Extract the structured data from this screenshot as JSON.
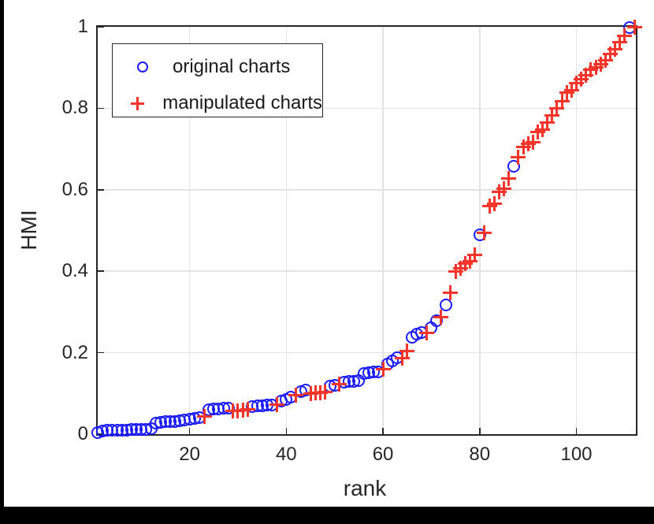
{
  "legend": {
    "items": [
      {
        "label": "original charts",
        "marker": "circle",
        "color": "#1a1aff"
      },
      {
        "label": "manipulated charts",
        "marker": "plus",
        "color": "#f5342a"
      }
    ]
  },
  "chart_data": {
    "type": "scatter",
    "title": "",
    "xlabel": "rank",
    "ylabel": "HMI",
    "xlim": [
      1,
      112.3
    ],
    "ylim": [
      0,
      1
    ],
    "grid": "on",
    "legend_position": "upper-left-inside",
    "x_ticks": [
      {
        "v": 20,
        "label": "20"
      },
      {
        "v": 40,
        "label": "40"
      },
      {
        "v": 60,
        "label": "60"
      },
      {
        "v": 80,
        "label": "80"
      },
      {
        "v": 100,
        "label": "100"
      }
    ],
    "y_ticks": [
      {
        "v": 0,
        "label": "0"
      },
      {
        "v": 0.2,
        "label": "0.2"
      },
      {
        "v": 0.4,
        "label": "0.4"
      },
      {
        "v": 0.6,
        "label": "0.6"
      },
      {
        "v": 0.8,
        "label": "0.8"
      },
      {
        "v": 1,
        "label": "1"
      }
    ],
    "series": [
      {
        "name": "original charts",
        "marker": "circle",
        "color": "#1a1aff",
        "points": [
          [
            1,
            0.004
          ],
          [
            2,
            0.008
          ],
          [
            3,
            0.009
          ],
          [
            4,
            0.009
          ],
          [
            5,
            0.01
          ],
          [
            6,
            0.01
          ],
          [
            7,
            0.01
          ],
          [
            8,
            0.011
          ],
          [
            9,
            0.011
          ],
          [
            10,
            0.012
          ],
          [
            11,
            0.012
          ],
          [
            12,
            0.013
          ],
          [
            13,
            0.028
          ],
          [
            14,
            0.029
          ],
          [
            15,
            0.03
          ],
          [
            16,
            0.03
          ],
          [
            17,
            0.031
          ],
          [
            18,
            0.032
          ],
          [
            19,
            0.034
          ],
          [
            20,
            0.036
          ],
          [
            21,
            0.038
          ],
          [
            22,
            0.04
          ],
          [
            24,
            0.06
          ],
          [
            25,
            0.061
          ],
          [
            26,
            0.062
          ],
          [
            27,
            0.063
          ],
          [
            28,
            0.064
          ],
          [
            33,
            0.068
          ],
          [
            34,
            0.069
          ],
          [
            35,
            0.07
          ],
          [
            36,
            0.071
          ],
          [
            37,
            0.072
          ],
          [
            39,
            0.082
          ],
          [
            40,
            0.086
          ],
          [
            41,
            0.09
          ],
          [
            43,
            0.105
          ],
          [
            44,
            0.108
          ],
          [
            49,
            0.118
          ],
          [
            50,
            0.12
          ],
          [
            52,
            0.128
          ],
          [
            53,
            0.13
          ],
          [
            54,
            0.13
          ],
          [
            55,
            0.131
          ],
          [
            56,
            0.148
          ],
          [
            57,
            0.15
          ],
          [
            58,
            0.152
          ],
          [
            59,
            0.153
          ],
          [
            61,
            0.172
          ],
          [
            62,
            0.18
          ],
          [
            63,
            0.188
          ],
          [
            66,
            0.238
          ],
          [
            67,
            0.245
          ],
          [
            68,
            0.25
          ],
          [
            70,
            0.262
          ],
          [
            71,
            0.278
          ],
          [
            73,
            0.318
          ],
          [
            80,
            0.49
          ],
          [
            87,
            0.658
          ],
          [
            111,
            0.998
          ]
        ]
      },
      {
        "name": "manipulated charts",
        "marker": "plus",
        "color": "#f5342a",
        "points": [
          [
            23,
            0.043
          ],
          [
            29,
            0.057
          ],
          [
            30,
            0.058
          ],
          [
            31,
            0.059
          ],
          [
            32,
            0.06
          ],
          [
            38,
            0.073
          ],
          [
            42,
            0.095
          ],
          [
            45,
            0.1
          ],
          [
            46,
            0.101
          ],
          [
            47,
            0.102
          ],
          [
            48,
            0.103
          ],
          [
            51,
            0.122
          ],
          [
            60,
            0.159
          ],
          [
            64,
            0.186
          ],
          [
            65,
            0.205
          ],
          [
            69,
            0.248
          ],
          [
            72,
            0.288
          ],
          [
            74,
            0.348
          ],
          [
            75,
            0.4
          ],
          [
            76,
            0.408
          ],
          [
            77,
            0.418
          ],
          [
            78,
            0.424
          ],
          [
            79,
            0.44
          ],
          [
            81,
            0.494
          ],
          [
            82,
            0.56
          ],
          [
            83,
            0.565
          ],
          [
            84,
            0.595
          ],
          [
            85,
            0.602
          ],
          [
            86,
            0.628
          ],
          [
            88,
            0.68
          ],
          [
            89,
            0.705
          ],
          [
            90,
            0.712
          ],
          [
            91,
            0.716
          ],
          [
            92,
            0.742
          ],
          [
            93,
            0.748
          ],
          [
            94,
            0.765
          ],
          [
            95,
            0.782
          ],
          [
            96,
            0.8
          ],
          [
            97,
            0.817
          ],
          [
            98,
            0.838
          ],
          [
            99,
            0.845
          ],
          [
            100,
            0.862
          ],
          [
            101,
            0.872
          ],
          [
            102,
            0.882
          ],
          [
            103,
            0.895
          ],
          [
            104,
            0.9
          ],
          [
            105,
            0.908
          ],
          [
            106,
            0.918
          ],
          [
            107,
            0.933
          ],
          [
            108,
            0.945
          ],
          [
            109,
            0.962
          ],
          [
            110,
            0.978
          ],
          [
            112,
            1.0
          ]
        ]
      }
    ]
  }
}
